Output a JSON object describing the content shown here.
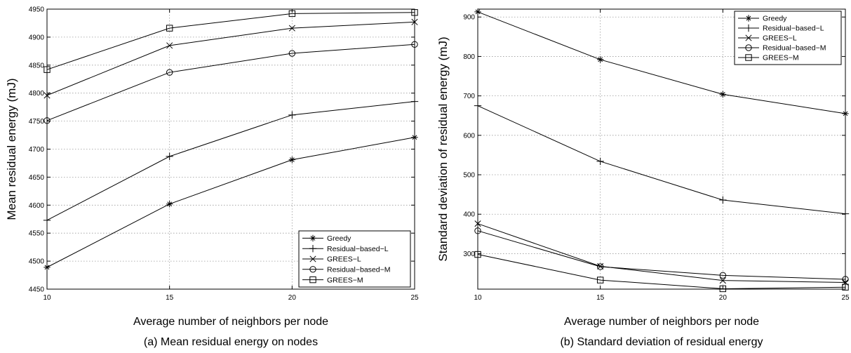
{
  "chart_data": [
    {
      "type": "line",
      "x": [
        10,
        15,
        20,
        25
      ],
      "xlim": [
        10,
        25
      ],
      "ylim": [
        4450,
        4950
      ],
      "xticks": [
        10,
        15,
        20,
        25
      ],
      "yticks": [
        4450,
        4500,
        4550,
        4600,
        4650,
        4700,
        4750,
        4800,
        4850,
        4900,
        4950
      ],
      "xlabel": "Average number of neighbors per node",
      "ylabel": "Mean residual energy (mJ)",
      "caption": "(a) Mean residual energy on nodes",
      "grid": true,
      "legend_position": "bottom-right",
      "series": [
        {
          "name": "Greedy",
          "marker": "asterisk",
          "values": [
            4489,
            4602,
            4681,
            4721
          ]
        },
        {
          "name": "Residual−based−L",
          "marker": "plus",
          "values": [
            4573,
            4687,
            4761,
            4785
          ]
        },
        {
          "name": "GREES−L",
          "marker": "x",
          "values": [
            4796,
            4885,
            4916,
            4927
          ]
        },
        {
          "name": "Residual−based−M",
          "marker": "circle",
          "values": [
            4751,
            4837,
            4871,
            4887
          ]
        },
        {
          "name": "GREES−M",
          "marker": "square",
          "values": [
            4842,
            4916,
            4942,
            4944
          ]
        }
      ]
    },
    {
      "type": "line",
      "x": [
        10,
        15,
        20,
        25
      ],
      "xlim": [
        10,
        25
      ],
      "ylim": [
        210,
        920
      ],
      "xticks": [
        10,
        15,
        20,
        25
      ],
      "yticks": [
        300,
        400,
        500,
        600,
        700,
        800,
        900
      ],
      "xlabel": "Average number of neighbors per node",
      "ylabel": "Standard deviation of residual energy (mJ)",
      "caption": "(b) Standard deviation of residual energy",
      "grid": true,
      "legend_position": "top-right",
      "series": [
        {
          "name": "Greedy",
          "marker": "asterisk",
          "values": [
            913,
            792,
            704,
            655
          ]
        },
        {
          "name": "Residual−based−L",
          "marker": "plus",
          "values": [
            675,
            534,
            436,
            401
          ]
        },
        {
          "name": "GREES−L",
          "marker": "x",
          "values": [
            376,
            268,
            232,
            227
          ]
        },
        {
          "name": "Residual−based−M",
          "marker": "circle",
          "values": [
            358,
            267,
            245,
            235
          ]
        },
        {
          "name": "GREES−M",
          "marker": "square",
          "values": [
            298,
            233,
            211,
            215
          ]
        }
      ]
    }
  ]
}
